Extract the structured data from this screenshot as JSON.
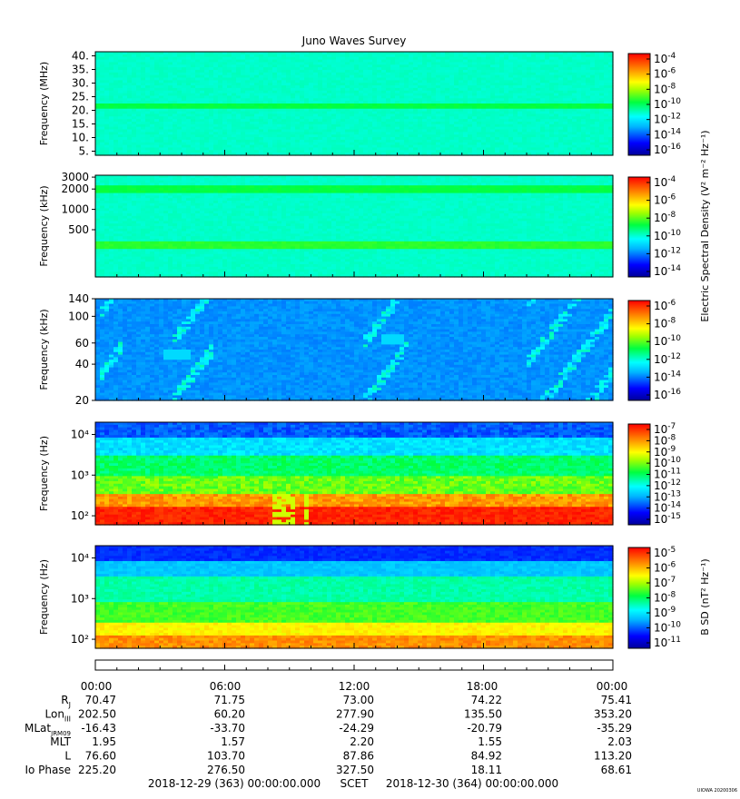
{
  "title": "Juno Waves Survey",
  "stamp": "UIOWA 20200306",
  "chart_data": [
    {
      "type": "heatmap",
      "ylabel": "Frequency (MHz)",
      "yticks": [
        "40.",
        "35.",
        "30.",
        "25.",
        "20.",
        "15.",
        "10.",
        "5."
      ],
      "ytick_values": [
        40,
        35,
        30,
        25,
        20,
        15,
        10,
        5
      ],
      "ylim": [
        3.5,
        41.5
      ],
      "yscale": "linear",
      "colorbar": {
        "ticks": [
          "-4",
          "-6",
          "-8",
          "-10",
          "-12",
          "-14",
          "-16"
        ],
        "label": ""
      },
      "features": {
        "background_level": 0.42,
        "bands": [
          {
            "y": 21.5,
            "level": 0.52
          }
        ]
      }
    },
    {
      "type": "heatmap",
      "ylabel": "Frequency (kHz)",
      "yticks": [
        "3000",
        "2000",
        "1000",
        "500"
      ],
      "ytick_values": [
        3000,
        2000,
        1000,
        500
      ],
      "ylim": [
        100,
        3200
      ],
      "yscale": "log",
      "colorbar": {
        "ticks": [
          "-4",
          "-6",
          "-8",
          "-10",
          "-12",
          "-14"
        ],
        "label": "Electric Spectral Density (V² m⁻² Hz⁻¹)"
      },
      "features": {
        "background_level": 0.42,
        "bands": [
          {
            "y": 2000,
            "level": 0.52
          },
          {
            "y": 290,
            "level": 0.55
          }
        ]
      }
    },
    {
      "type": "heatmap",
      "ylabel": "Frequency (kHz)",
      "yticks": [
        "140",
        "100",
        "60",
        "40",
        "20"
      ],
      "ytick_values": [
        140,
        100,
        60,
        40,
        20
      ],
      "ylim": [
        20,
        140
      ],
      "yscale": "log",
      "colorbar": {
        "ticks": [
          "-6",
          "-8",
          "-10",
          "-12",
          "-14",
          "-16"
        ],
        "label": ""
      },
      "features": {
        "background_level": 0.25,
        "emission_hours": [
          [
            0.5,
            3.5
          ],
          [
            11.0,
            16.5
          ],
          [
            37.5,
            43.5
          ],
          [
            60.0,
            72.0
          ]
        ]
      }
    },
    {
      "type": "heatmap",
      "ylabel": "Frequency (Hz)",
      "yticks": [
        "10⁴",
        "10³",
        "10²"
      ],
      "ytick_values": [
        10000,
        1000,
        100
      ],
      "ylim": [
        60,
        20000
      ],
      "yscale": "log",
      "colorbar": {
        "ticks": [
          "-7",
          "-8",
          "-9",
          "-10",
          "-11",
          "-12",
          "-13",
          "-14",
          "-15"
        ],
        "label": ""
      },
      "features": {
        "bands_low_to_high": [
          "red",
          "yellow",
          "green",
          "cyan",
          "blue"
        ]
      }
    },
    {
      "type": "heatmap",
      "ylabel": "Frequency (Hz)",
      "yticks": [
        "10⁴",
        "10³",
        "10²"
      ],
      "ytick_values": [
        10000,
        1000,
        100
      ],
      "ylim": [
        60,
        20000
      ],
      "yscale": "log",
      "colorbar": {
        "ticks": [
          "-5",
          "-6",
          "-7",
          "-8",
          "-9",
          "-10",
          "-11"
        ],
        "label": "B SD (nT² Hz⁻¹)"
      },
      "features": {
        "bands_low_to_high": [
          "orange",
          "yellow",
          "green",
          "cyan",
          "blue"
        ]
      }
    }
  ],
  "axis": {
    "times": [
      "00:00",
      "06:00",
      "12:00",
      "18:00",
      "00:00"
    ],
    "rows": [
      {
        "label": "RJ",
        "values": [
          "70.47",
          "71.75",
          "73.00",
          "74.22",
          "75.41"
        ]
      },
      {
        "label": "LonIII",
        "values": [
          "202.50",
          "60.20",
          "277.90",
          "135.50",
          "353.20"
        ]
      },
      {
        "label": "MLatJRM09",
        "values": [
          "-16.43",
          "-33.70",
          "-24.29",
          "-20.79",
          "-35.29"
        ]
      },
      {
        "label": "MLT",
        "values": [
          "1.95",
          "1.57",
          "2.20",
          "1.55",
          "2.03"
        ]
      },
      {
        "label": "L",
        "values": [
          "76.60",
          "103.70",
          "87.86",
          "84.92",
          "113.20"
        ]
      },
      {
        "label": "Io Phase",
        "values": [
          "225.20",
          "276.50",
          "327.50",
          "18.11",
          "68.61"
        ]
      }
    ],
    "footer": {
      "start": "2018-12-29 (363) 00:00:00.000",
      "mid": "SCET",
      "end": "2018-12-30 (364) 00:00:00.000"
    }
  }
}
